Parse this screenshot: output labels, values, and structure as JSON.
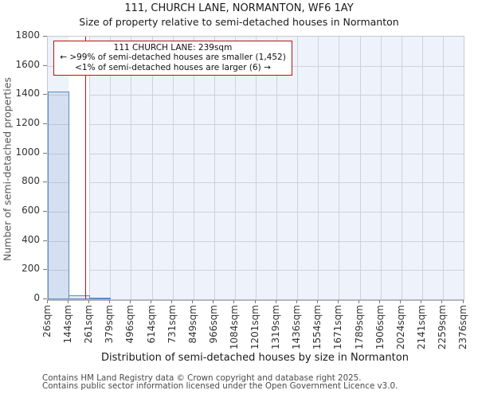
{
  "header": {
    "title": "111, CHURCH LANE, NORMANTON, WF6 1AY",
    "subtitle": "Size of property relative to semi-detached houses in Normanton"
  },
  "annotation": {
    "line1": "111 CHURCH LANE: 239sqm",
    "line2": "← >99% of semi-detached houses are smaller (1,452)",
    "line3": "<1% of semi-detached houses are larger (6) →"
  },
  "footer": {
    "line1": "Contains HM Land Registry data © Crown copyright and database right 2025.",
    "line2": "Contains public sector information licensed under the Open Government Licence v3.0."
  },
  "chart_data": {
    "type": "bar",
    "title": "111, CHURCH LANE, NORMANTON, WF6 1AY",
    "subtitle": "Size of property relative to semi-detached houses in Normanton",
    "xlabel": "Distribution of semi-detached houses by size in Normanton",
    "ylabel": "Number of semi-detached properties",
    "x_tick_labels": [
      "26sqm",
      "144sqm",
      "261sqm",
      "379sqm",
      "496sqm",
      "614sqm",
      "731sqm",
      "849sqm",
      "966sqm",
      "1084sqm",
      "1201sqm",
      "1319sqm",
      "1436sqm",
      "1554sqm",
      "1671sqm",
      "1789sqm",
      "1906sqm",
      "2024sqm",
      "2141sqm",
      "2259sqm",
      "2376sqm"
    ],
    "x_range_sqm": [
      26,
      2376
    ],
    "values": [
      1426,
      27,
      6,
      0,
      0,
      0,
      0,
      0,
      0,
      0,
      0,
      0,
      0,
      0,
      0,
      0,
      0,
      0,
      0,
      0
    ],
    "y_ticks": [
      0,
      200,
      400,
      600,
      800,
      1000,
      1200,
      1400,
      1600,
      1800
    ],
    "ylim": [
      0,
      1800
    ],
    "grid": true,
    "legend": "none",
    "property_size_sqm": 239,
    "smaller_count": "1,452",
    "larger_count": "6",
    "highlight_bin_index": 1,
    "colors": {
      "bar_fill": "rgba(95,140,200,0.18)",
      "bar_edge": "#5b8cc4",
      "marker_line": "#c11212",
      "annotation_border": "#b61414",
      "plot_bg": "#eef2fa",
      "grid_line": "#cdd2db",
      "highlight_band": "#ffffff",
      "tick_mark": "#777777"
    }
  }
}
